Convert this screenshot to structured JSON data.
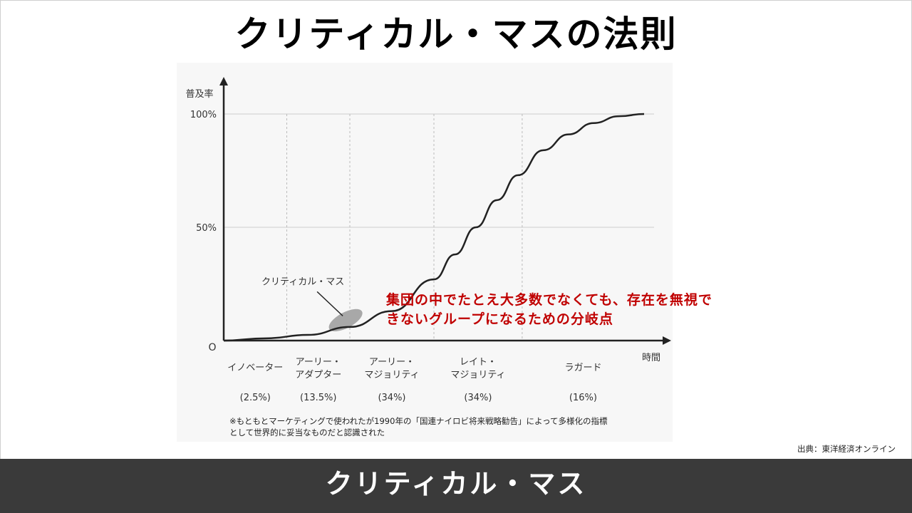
{
  "slide": {
    "title": "クリティカル・マスの法則",
    "callout_line1": "集団の中でたとえ大多数でなくても、存在を無視で",
    "callout_line2": "きないグループになるための分岐点",
    "footnote_line1": "※もともとマーケティングで使われたが1990年の「国連ナイロビ将来戦略勧告」によって多様化の指標",
    "footnote_line2": "として世界的に妥当なものだと認識された",
    "source": "出典：東洋経済オンライン",
    "banner": "クリティカル・マス",
    "colors": {
      "callout": "#c00000",
      "banner_bg": "#3a3a3a",
      "curve": "#222222",
      "ellipse": "#a8a8a8"
    }
  },
  "chart_data": {
    "type": "line",
    "ylabel": "普及率",
    "xlabel": "時間",
    "origin_label": "O",
    "y_ticks": [
      "100%",
      "50%"
    ],
    "ylim": [
      0,
      100
    ],
    "xlim": [
      0,
      100
    ],
    "grid": "horizontal-solid at 50% and 100%, vertical-dashed at segment boundaries",
    "series": [
      {
        "points": [
          [
            0,
            0
          ],
          [
            10,
            1
          ],
          [
            20,
            2.5
          ],
          [
            30,
            6
          ],
          [
            40,
            13
          ],
          [
            50,
            27
          ],
          [
            55,
            38
          ],
          [
            60,
            50
          ],
          [
            65,
            62
          ],
          [
            70,
            73
          ],
          [
            76,
            84
          ],
          [
            82,
            91
          ],
          [
            88,
            96
          ],
          [
            94,
            99
          ],
          [
            100,
            100
          ]
        ]
      }
    ],
    "segments": [
      {
        "label": "イノベーター",
        "share": "(2.5%)",
        "from": 0,
        "to": 15
      },
      {
        "label": "アーリー・アダプター",
        "share": "(13.5%)",
        "from": 15,
        "to": 30
      },
      {
        "label": "アーリー・マジョリティ",
        "share": "(34%)",
        "from": 30,
        "to": 50
      },
      {
        "label": "レイト・マジョリティ",
        "share": "(34%)",
        "from": 50,
        "to": 71
      },
      {
        "label": "ラガード",
        "share": "(16%)",
        "from": 71,
        "to": 100
      }
    ],
    "segment_label_lines": [
      [
        "イノベーター"
      ],
      [
        "アーリー・",
        "アダプター"
      ],
      [
        "アーリー・",
        "マジョリティ"
      ],
      [
        "レイト・",
        "マジョリティ"
      ],
      [
        "ラガード"
      ]
    ],
    "annotation": {
      "label": "クリティカル・マス",
      "at": [
        29,
        9
      ]
    }
  }
}
